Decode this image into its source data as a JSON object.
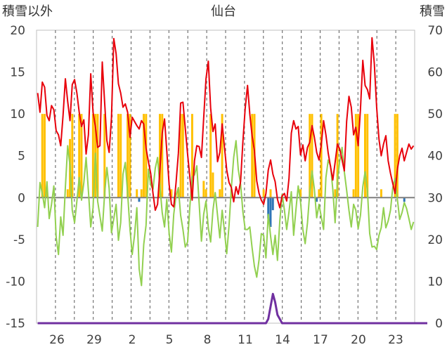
{
  "chart_data": {
    "type": "line",
    "title": "仙台",
    "left_axis_title": "積雪以外",
    "right_axis_title": "積雪",
    "x_tick_labels": [
      "26",
      "29",
      "2",
      "5",
      "8",
      "11",
      "14",
      "17",
      "20",
      "23"
    ],
    "y_left": {
      "min": -15,
      "max": 20,
      "step": 5,
      "ticks": [
        20,
        15,
        10,
        5,
        0,
        -5,
        -10,
        -15
      ]
    },
    "y_right": {
      "min": 0,
      "max": 70,
      "step": 10,
      "ticks": [
        70,
        60,
        50,
        40,
        30,
        20,
        10,
        0
      ]
    },
    "grid": {
      "vertical": "dashed"
    },
    "colors": {
      "max_temp": "#e8000b",
      "min_temp": "#92d050",
      "precip_bar": "#ffc000",
      "snowfall_bar": "#2e75b6",
      "snow_depth": "#7030a0",
      "zero_line": "#7f7f7f"
    },
    "series": [
      {
        "key": "max_temp",
        "axis": "left",
        "style": "line",
        "values": [
          12.5,
          10.2,
          13.8,
          13.2,
          9.8,
          9.2,
          11.0,
          10.5,
          8.0,
          7.5,
          6.2,
          9.8,
          14.2,
          11.5,
          9.2,
          13.5,
          14.1,
          12.5,
          10.2,
          8.5,
          9.3,
          5.2,
          7.5,
          14.8,
          10.2,
          8.5,
          6.0,
          6.2,
          16.2,
          11.5,
          6.8,
          5.4,
          9.5,
          19.0,
          17.2,
          13.6,
          12.5,
          10.8,
          11.2,
          10.2,
          7.2,
          9.6,
          9.1,
          8.6,
          8.2,
          9.2,
          8.8,
          5.9,
          4.3,
          2.9,
          0.5,
          -1.5,
          -0.8,
          3.3,
          7.7,
          9.4,
          5.6,
          1.6,
          -0.8,
          -1.1,
          1.8,
          5.3,
          11.3,
          11.4,
          8.3,
          5.2,
          2.4,
          -0.3,
          4.4,
          6.2,
          6.1,
          4.8,
          9.5,
          14.2,
          16.3,
          10.7,
          7.9,
          8.8,
          4.3,
          5.4,
          8.8,
          6.0,
          3.3,
          1.8,
          1.2,
          -0.5,
          1.3,
          0.4,
          1.9,
          6.7,
          10.7,
          13.4,
          10.0,
          7.4,
          5.6,
          2.0,
          0.5,
          -0.3,
          -0.8,
          0.5,
          3.3,
          4.5,
          2.8,
          1.9,
          -0.2,
          -1.2,
          0.2,
          0.5,
          -0.4,
          2.3,
          7.7,
          9.2,
          8.2,
          8.5,
          5.1,
          6.3,
          4.4,
          6.0,
          6.6,
          8.6,
          7.2,
          5.4,
          4.5,
          6.3,
          9.2,
          7.5,
          5.3,
          3.7,
          2.1,
          4.2,
          6.4,
          5.8,
          4.5,
          3.2,
          9.1,
          12.1,
          10.8,
          7.5,
          8.4,
          6.2,
          10.6,
          16.4,
          13.4,
          12.9,
          11.8,
          19.1,
          16.0,
          10.8,
          7.0,
          5.0,
          6.4,
          7.4,
          4.4,
          2.9,
          1.7,
          0.5,
          3.4,
          5.0,
          5.9,
          4.4,
          5.4,
          6.4,
          5.8,
          6.2
        ]
      },
      {
        "key": "min_temp",
        "axis": "left",
        "style": "line",
        "values": [
          -3.5,
          1.8,
          0.5,
          -1.2,
          1.9,
          -2.5,
          -0.8,
          1.4,
          -4.7,
          -6.8,
          -2.3,
          -4.5,
          1.2,
          6.2,
          3.8,
          -1.5,
          -3.0,
          -0.4,
          2.4,
          -0.3,
          1.8,
          4.8,
          0.8,
          -3.5,
          -1.2,
          5.3,
          -0.4,
          -2.2,
          -4.0,
          0.4,
          3.6,
          1.1,
          -4.2,
          -2.5,
          -0.8,
          -5.1,
          -3.0,
          2.8,
          4.2,
          0.5,
          -3.7,
          -6.8,
          -4.5,
          -1.2,
          -8.5,
          -10.5,
          -5.6,
          -3.3,
          3.4,
          1.5,
          1.0,
          3.5,
          4.8,
          1.4,
          -1.8,
          -3.5,
          -0.2,
          -4.2,
          -6.5,
          -2.0,
          0.3,
          1.2,
          -2.1,
          -3.8,
          -5.9,
          -5.3,
          -1.0,
          2.5,
          2.7,
          3.8,
          -0.6,
          -5.2,
          -2.0,
          -0.4,
          -3.6,
          -5.3,
          -1.5,
          0.6,
          -2.1,
          -4.8,
          -1.5,
          -4.0,
          -6.7,
          -3.3,
          1.2,
          4.8,
          6.8,
          3.4,
          1.6,
          -1.7,
          -3.8,
          -3.8,
          -3.5,
          -6.0,
          -8.2,
          -9.5,
          -7.4,
          -4.3,
          -4.5,
          -7.2,
          -2.0,
          -4.6,
          -6.8,
          -4.5,
          -7.5,
          -2.8,
          0.4,
          -1.5,
          -3.8,
          -1.7,
          0.7,
          -4.5,
          -1.4,
          1.4,
          -0.5,
          -3.8,
          -5.5,
          -3.0,
          0.6,
          3.2,
          1.0,
          -2.4,
          -0.8,
          -2.3,
          -3.8,
          2.4,
          4.5,
          3.8,
          1.0,
          -3.0,
          2.0,
          4.4,
          6.0,
          3.1,
          0.9,
          -1.5,
          -3.5,
          -0.8,
          -1.5,
          -3.7,
          -2.1,
          1.3,
          3.1,
          0.8,
          -4.3,
          -5.9,
          -5.8,
          -6.2,
          -4.5,
          -3.6,
          -1.2,
          -3.6,
          -2.8,
          -1.5,
          1.2,
          2.3,
          -0.2,
          -2.6,
          -1.8,
          -0.6,
          -1.3,
          -2.5,
          -3.8,
          -2.9
        ]
      },
      {
        "key": "precip_bar",
        "axis": "left",
        "style": "bar",
        "values": [
          0,
          0,
          10,
          10,
          1,
          0,
          0,
          0,
          0,
          0,
          0,
          0,
          0,
          1,
          7,
          10,
          0,
          0,
          10,
          10,
          0,
          0,
          0,
          0,
          10,
          10,
          10,
          0,
          0,
          10,
          0,
          0,
          0,
          0,
          0,
          10,
          10,
          0,
          0,
          10,
          10,
          0,
          0,
          1,
          0,
          1,
          10,
          10,
          0,
          0,
          0,
          0,
          0,
          10,
          10,
          0,
          0,
          0,
          1,
          0,
          0,
          1,
          10,
          10,
          0,
          0,
          0,
          10,
          0,
          0,
          0,
          0,
          2,
          1,
          0,
          10,
          3,
          0,
          0,
          1,
          10,
          0,
          0,
          0,
          1,
          0,
          0,
          0,
          0,
          0,
          0,
          0,
          0,
          10,
          10,
          0,
          0,
          0,
          1,
          0,
          0,
          1,
          0,
          0,
          0,
          0,
          0,
          0,
          0,
          0,
          0,
          0,
          0,
          0,
          1,
          0,
          0,
          0,
          10,
          10,
          0,
          0,
          1,
          10,
          0,
          0,
          0,
          0,
          0,
          1,
          10,
          0,
          0,
          0,
          0,
          0,
          0,
          1,
          10,
          10,
          0,
          0,
          10,
          10,
          0,
          0,
          0,
          0,
          0,
          1,
          0,
          0,
          0,
          0,
          0,
          10,
          10,
          0,
          0,
          0,
          0,
          0,
          0,
          0,
          0,
          0
        ]
      },
      {
        "key": "snowfall_bar",
        "axis": "left",
        "style": "bar",
        "values": [
          0,
          0,
          0,
          0,
          0,
          0,
          0,
          0,
          0,
          0,
          0,
          0,
          0,
          0,
          0,
          0,
          0,
          0,
          0,
          0,
          0,
          0,
          0,
          0,
          0,
          0,
          0,
          0,
          0,
          0,
          0,
          0,
          0,
          0,
          0,
          0,
          0,
          0,
          0,
          0,
          0,
          0,
          0,
          0,
          -0.5,
          0,
          0,
          0,
          0,
          0,
          0,
          0,
          0,
          0,
          0,
          0,
          0,
          0,
          0,
          0,
          0,
          0,
          0,
          0,
          0,
          0,
          0,
          0,
          0,
          0,
          0,
          0,
          0,
          0,
          0,
          0,
          0,
          0,
          0,
          0,
          0,
          0,
          0,
          0,
          0,
          0,
          0,
          0,
          0,
          0,
          0,
          0,
          0,
          0,
          0,
          0,
          0,
          0,
          0,
          0,
          -2.5,
          -3.5,
          -1.5,
          0,
          0,
          0,
          0,
          0,
          0,
          0,
          0,
          0,
          0,
          0,
          0,
          0,
          0,
          0,
          0,
          0,
          0,
          -0.5,
          0,
          0,
          0,
          0,
          0,
          0,
          0,
          0,
          0,
          0,
          0,
          0,
          0,
          0,
          0,
          0,
          0,
          0,
          0,
          0,
          0,
          0,
          0,
          0,
          0,
          0,
          0,
          0,
          0,
          0,
          0,
          0,
          0,
          0,
          0,
          0,
          0,
          -0.5,
          0,
          0,
          0,
          0,
          0,
          0,
          0
        ]
      },
      {
        "key": "snow_depth",
        "axis": "right",
        "style": "line",
        "values": [
          0,
          0,
          0,
          0,
          0,
          0,
          0,
          0,
          0,
          0,
          0,
          0,
          0,
          0,
          0,
          0,
          0,
          0,
          0,
          0,
          0,
          0,
          0,
          0,
          0,
          0,
          0,
          0,
          0,
          0,
          0,
          0,
          0,
          0,
          0,
          0,
          0,
          0,
          0,
          0,
          0,
          0,
          0,
          0,
          0,
          0,
          0,
          0,
          0,
          0,
          0,
          0,
          0,
          0,
          0,
          0,
          0,
          0,
          0,
          0,
          0,
          0,
          0,
          0,
          0,
          0,
          0,
          0,
          0,
          0,
          0,
          0,
          0,
          0,
          0,
          0,
          0,
          0,
          0,
          0,
          0,
          0,
          0,
          0,
          0,
          0,
          0,
          0,
          0,
          0,
          0,
          0,
          0,
          0,
          0,
          0,
          0,
          0,
          0,
          0,
          1,
          4,
          7,
          5,
          2,
          1,
          0,
          0,
          0,
          0,
          0,
          0,
          0,
          0,
          0,
          0,
          0,
          0,
          0,
          0,
          0,
          0,
          0,
          0,
          0,
          0,
          0,
          0,
          0,
          0,
          0,
          0,
          0,
          0,
          0,
          0,
          0,
          0,
          0,
          0,
          0,
          0,
          0,
          0,
          0,
          0,
          0,
          0,
          0,
          0,
          0,
          0,
          0,
          0,
          0,
          0,
          0,
          0,
          0,
          0,
          0,
          0,
          0,
          0,
          0,
          0,
          0,
          0,
          0,
          0
        ]
      }
    ]
  }
}
